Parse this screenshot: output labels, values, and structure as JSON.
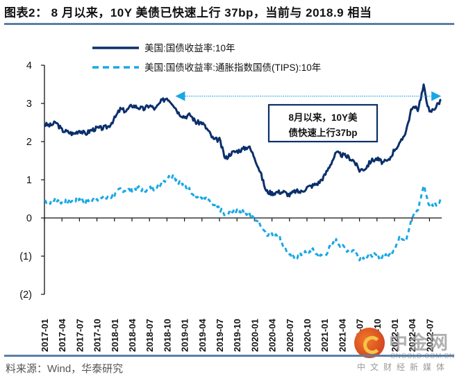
{
  "header": {
    "title": "图表2： 8 月以来，10Y 美债已快速上行 37bp，当前与 2018.9 相当"
  },
  "footer": {
    "source": "料来源：Wind，华泰研究"
  },
  "watermark": {
    "brand": "中金网",
    "url": "CNGOLD.COM.CN",
    "tagline": "中文财经新媒体",
    "icon": "cngold-logo-icon"
  },
  "annotation": {
    "line1": "8月以来，10Y美",
    "line2": "债快速上行37bp",
    "reference_value": 3.1,
    "arrow_from": "2022-09",
    "arrow_to": "2018-10"
  },
  "colors": {
    "nominal": "#0b2f6b",
    "tips": "#1aa7e6",
    "axis": "#111111",
    "annotation_border": "#0b2f6b",
    "rule": "#5b7fa6"
  },
  "chart_data": {
    "type": "line",
    "title": "图表2： 8 月以来，10Y 美债已快速上行 37bp，当前与 2018.9 相当",
    "xlabel": "",
    "ylabel": "",
    "ylim": [
      -2,
      4
    ],
    "yticks": [
      4,
      3,
      2,
      1,
      0,
      -1,
      -2
    ],
    "ytick_labels": [
      "4",
      "3",
      "2",
      "1",
      "0",
      "(1)",
      "(2)"
    ],
    "grid": false,
    "legend_position": "top-center",
    "x": [
      "2017-01",
      "2017-02",
      "2017-03",
      "2017-04",
      "2017-05",
      "2017-06",
      "2017-07",
      "2017-08",
      "2017-09",
      "2017-10",
      "2017-11",
      "2017-12",
      "2018-01",
      "2018-02",
      "2018-03",
      "2018-04",
      "2018-05",
      "2018-06",
      "2018-07",
      "2018-08",
      "2018-09",
      "2018-10",
      "2018-11",
      "2018-12",
      "2019-01",
      "2019-02",
      "2019-03",
      "2019-04",
      "2019-05",
      "2019-06",
      "2019-07",
      "2019-08",
      "2019-09",
      "2019-10",
      "2019-11",
      "2019-12",
      "2020-01",
      "2020-02",
      "2020-03",
      "2020-04",
      "2020-05",
      "2020-06",
      "2020-07",
      "2020-08",
      "2020-09",
      "2020-10",
      "2020-11",
      "2020-12",
      "2021-01",
      "2021-02",
      "2021-03",
      "2021-04",
      "2021-05",
      "2021-06",
      "2021-07",
      "2021-08",
      "2021-09",
      "2021-10",
      "2021-11",
      "2021-12",
      "2022-01",
      "2022-02",
      "2022-03",
      "2022-04",
      "2022-05",
      "2022-06",
      "2022-07",
      "2022-08",
      "2022-09"
    ],
    "xtick_labels": [
      "2017-01",
      "2017-04",
      "2017-07",
      "2017-10",
      "2018-01",
      "2018-04",
      "2018-07",
      "2018-10",
      "2019-01",
      "2019-04",
      "2019-07",
      "2019-10",
      "2020-01",
      "2020-04",
      "2020-07",
      "2020-10",
      "2021-01",
      "2021-04",
      "2021-07",
      "2021-10",
      "2022-01",
      "2022-04",
      "2022-07"
    ],
    "series": [
      {
        "name": "美国:国债收益率:10年",
        "style": "solid",
        "values": [
          2.45,
          2.42,
          2.5,
          2.3,
          2.25,
          2.2,
          2.3,
          2.2,
          2.3,
          2.35,
          2.35,
          2.4,
          2.6,
          2.85,
          2.8,
          2.95,
          2.9,
          2.85,
          2.95,
          2.85,
          3.05,
          3.15,
          3.0,
          2.75,
          2.65,
          2.7,
          2.5,
          2.5,
          2.3,
          2.05,
          2.05,
          1.55,
          1.7,
          1.75,
          1.8,
          1.88,
          1.6,
          1.2,
          0.7,
          0.65,
          0.68,
          0.68,
          0.6,
          0.7,
          0.68,
          0.8,
          0.85,
          0.92,
          1.1,
          1.4,
          1.7,
          1.65,
          1.6,
          1.5,
          1.25,
          1.3,
          1.5,
          1.55,
          1.45,
          1.5,
          1.8,
          1.95,
          2.3,
          2.9,
          2.85,
          3.45,
          2.75,
          2.9,
          3.1
        ]
      },
      {
        "name": "美国:国债收益率:通胀指数国债(TIPS):10年",
        "style": "dashed",
        "values": [
          0.45,
          0.42,
          0.5,
          0.4,
          0.45,
          0.45,
          0.5,
          0.4,
          0.45,
          0.5,
          0.5,
          0.52,
          0.6,
          0.75,
          0.72,
          0.75,
          0.8,
          0.72,
          0.78,
          0.77,
          0.9,
          1.05,
          1.1,
          0.95,
          0.85,
          0.72,
          0.55,
          0.55,
          0.45,
          0.3,
          0.25,
          0.05,
          0.15,
          0.2,
          0.15,
          0.1,
          0.0,
          -0.15,
          -0.4,
          -0.45,
          -0.4,
          -0.75,
          -1.0,
          -1.05,
          -0.95,
          -0.9,
          -0.85,
          -1.0,
          -1.0,
          -0.75,
          -0.6,
          -0.75,
          -0.85,
          -0.85,
          -1.05,
          -1.05,
          -0.95,
          -1.0,
          -1.0,
          -1.0,
          -0.8,
          -0.5,
          -0.55,
          0.0,
          0.2,
          0.85,
          0.3,
          0.35,
          0.5
        ]
      }
    ]
  }
}
